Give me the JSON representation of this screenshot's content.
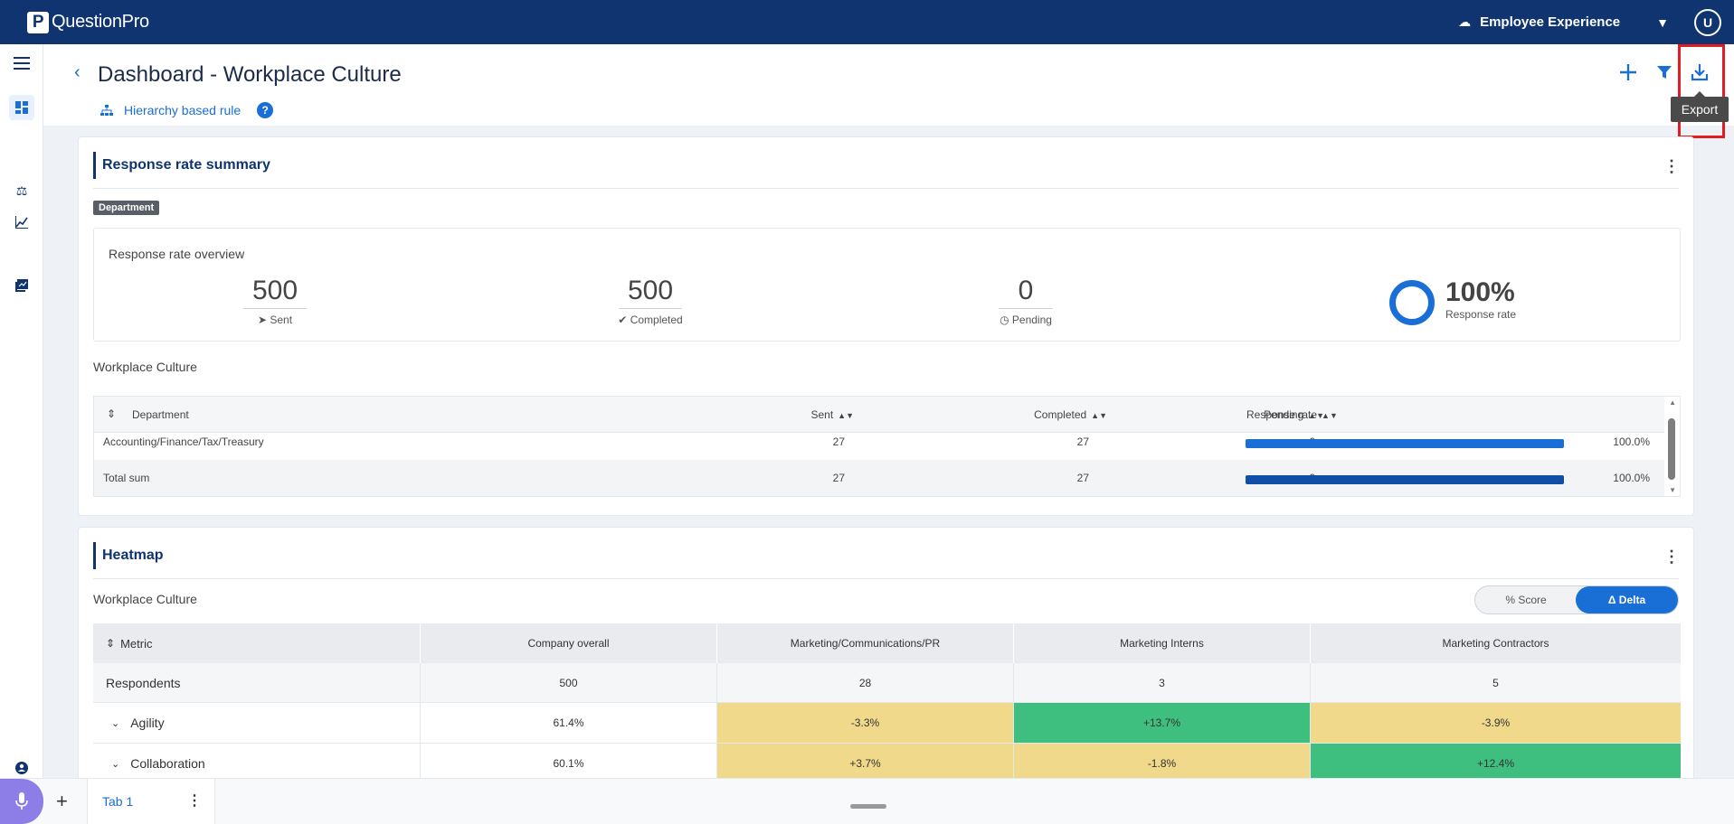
{
  "app": {
    "name": "QuestionPro",
    "logo_letter": "P"
  },
  "topbar": {
    "product": "Employee Experience",
    "avatar_initial": "U"
  },
  "header": {
    "title": "Dashboard - Workplace Culture",
    "rule_link": "Hierarchy based rule",
    "help": "?",
    "export_tooltip": "Export"
  },
  "response_summary": {
    "title": "Response rate summary",
    "tag": "Department",
    "overview_title": "Response rate overview",
    "sent": {
      "value": "500",
      "label": "Sent"
    },
    "completed": {
      "value": "500",
      "label": "Completed"
    },
    "pending": {
      "value": "0",
      "label": "Pending"
    },
    "rate": {
      "value": "100%",
      "label": "Response rate",
      "fill": 1.0
    },
    "table_caption": "Workplace Culture",
    "columns": [
      "Department",
      "Sent",
      "Completed",
      "Pending",
      "Response rate"
    ],
    "rows": [
      {
        "department": "Accounting/Finance/Tax/Treasury",
        "sent": "27",
        "completed": "27",
        "pending": "0",
        "rate": "100.0%",
        "fill": 1.0
      }
    ],
    "total": {
      "department": "Total sum",
      "sent": "27",
      "completed": "27",
      "pending": "0",
      "rate": "100.0%",
      "fill": 1.0
    }
  },
  "heatmap": {
    "title": "Heatmap",
    "caption": "Workplace Culture",
    "toggle": {
      "score": "% Score",
      "delta": "Δ Delta"
    },
    "columns": [
      "Metric",
      "Company overall",
      "Marketing/Communications/PR",
      "Marketing Interns",
      "Marketing Contractors"
    ],
    "respondents": {
      "label": "Respondents",
      "values": [
        "500",
        "28",
        "3",
        "5"
      ]
    },
    "rows": [
      {
        "metric": "Agility",
        "overall": "61.4%",
        "values": [
          "-3.3%",
          "+13.7%",
          "-3.9%"
        ],
        "colors": [
          "#f0d98a",
          "#3fbf7f",
          "#f0d98a"
        ]
      },
      {
        "metric": "Collaboration",
        "overall": "60.1%",
        "values": [
          "+3.7%",
          "-1.8%",
          "+12.4%"
        ],
        "colors": [
          "#f0d98a",
          "#f0d98a",
          "#3fbf7f"
        ]
      }
    ]
  },
  "tabs": {
    "active": "Tab 1"
  }
}
